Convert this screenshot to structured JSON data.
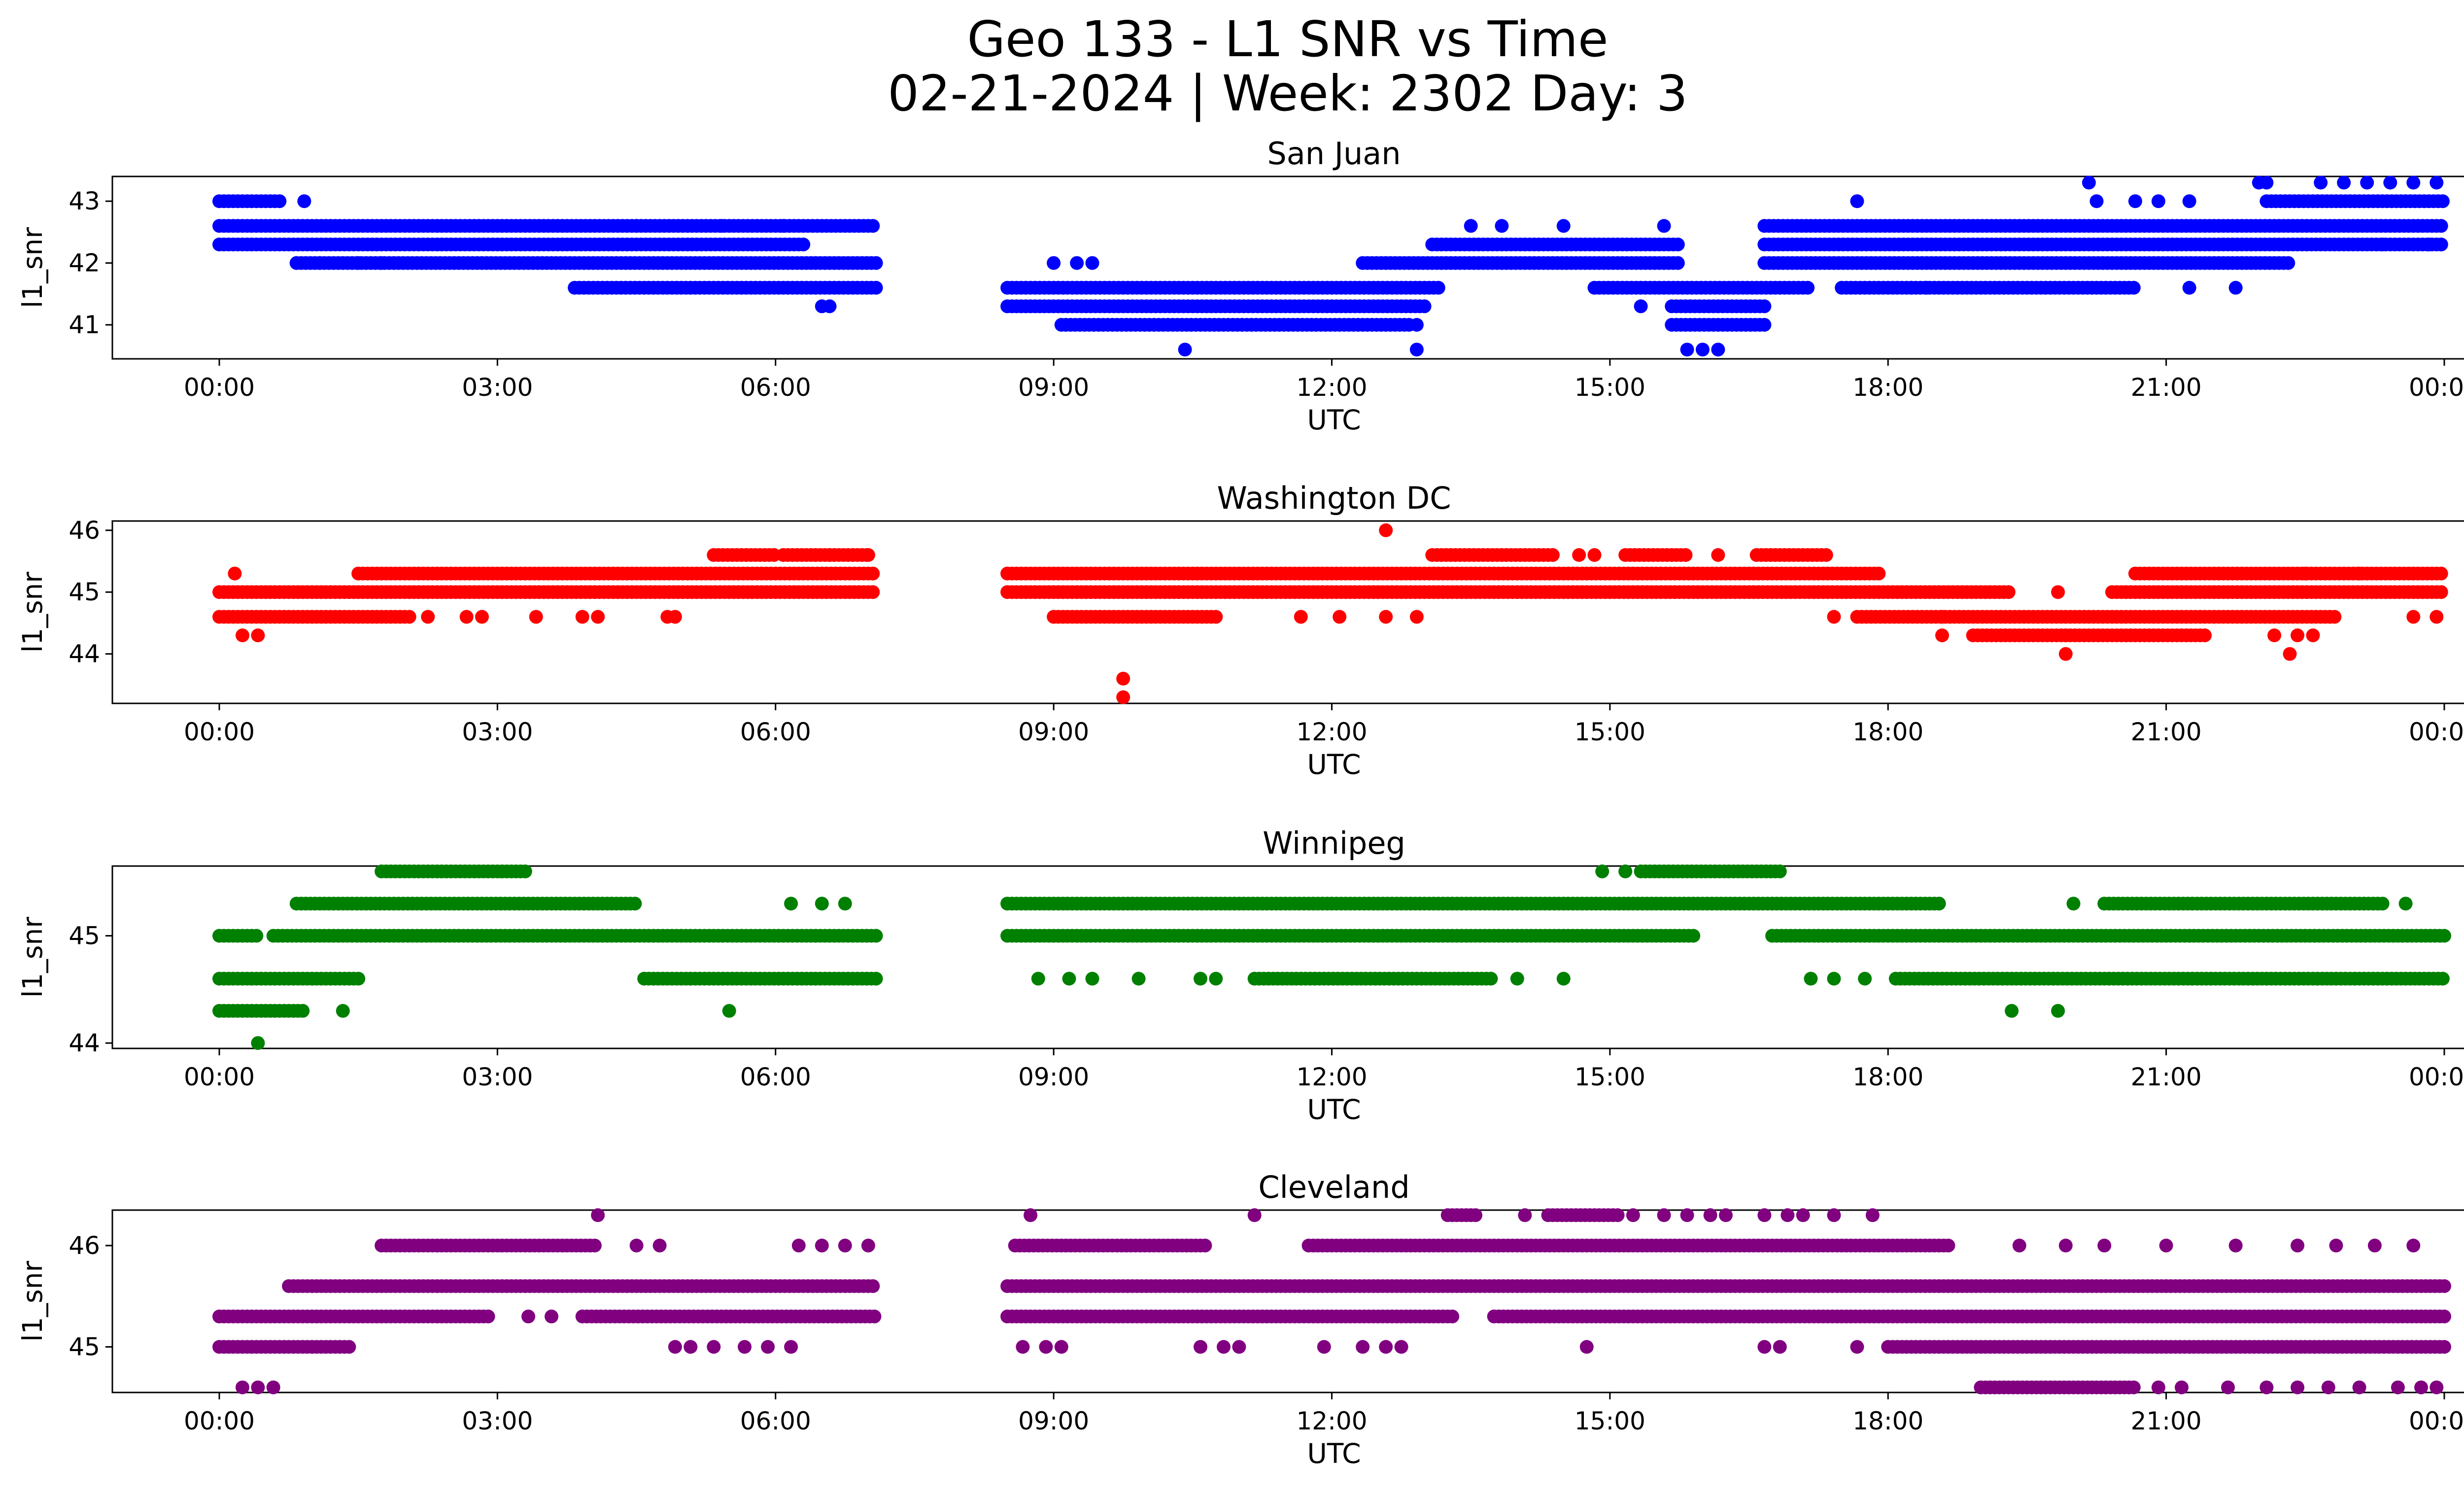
{
  "figure": {
    "title_line1": "Geo 133 - L1 SNR vs Time",
    "title_line2": "02-21-2024 | Week: 2302 Day: 3"
  },
  "chart_data": [
    {
      "type": "scatter",
      "title": "San Juan",
      "xlabel": "UTC",
      "ylabel": "l1_snr",
      "color": "#0000ff",
      "xlim": [
        "00:00",
        "24:00"
      ],
      "xticks": [
        "00:00",
        "03:00",
        "06:00",
        "09:00",
        "12:00",
        "15:00",
        "18:00",
        "21:00",
        "00:00"
      ],
      "ylim": [
        40.45,
        43.4
      ],
      "yticks": [
        41,
        42,
        43
      ],
      "y_levels": [
        41.0,
        41.3,
        41.6,
        42.0,
        42.3,
        42.6,
        43.0
      ],
      "bands": [
        {
          "y": 42.6,
          "segments": [
            [
              "00:00",
              "07:05"
            ],
            [
              "16:40",
              "24:00"
            ]
          ]
        },
        {
          "y": 42.3,
          "segments": [
            [
              "00:00",
              "06:20"
            ],
            [
              "13:05",
              "15:45"
            ],
            [
              "16:40",
              "24:00"
            ]
          ]
        },
        {
          "y": 42.0,
          "segments": [
            [
              "00:50",
              "07:05"
            ],
            [
              "12:20",
              "15:45"
            ],
            [
              "16:40",
              "22:20"
            ]
          ]
        },
        {
          "y": 41.6,
          "segments": [
            [
              "03:50",
              "07:05"
            ],
            [
              "08:30",
              "13:10"
            ],
            [
              "14:50",
              "17:10"
            ],
            [
              "17:30",
              "20:40"
            ]
          ]
        },
        {
          "y": 41.3,
          "segments": [
            [
              "08:30",
              "13:00"
            ],
            [
              "15:40",
              "16:40"
            ]
          ]
        },
        {
          "y": 41.0,
          "segments": [
            [
              "09:05",
              "12:50"
            ],
            [
              "15:40",
              "16:40"
            ]
          ]
        },
        {
          "y": 43.0,
          "segments": [
            [
              "00:00",
              "00:40"
            ],
            [
              "22:05",
              "24:00"
            ]
          ]
        }
      ],
      "points": [
        [
          "00:55",
          43.0
        ],
        [
          "00:50",
          42.0
        ],
        [
          "01:05",
          42.0
        ],
        [
          "01:30",
          42.0
        ],
        [
          "01:45",
          42.0
        ],
        [
          "04:30",
          42.6
        ],
        [
          "05:25",
          42.6
        ],
        [
          "06:05",
          42.6
        ],
        [
          "06:30",
          41.3
        ],
        [
          "06:35",
          41.3
        ],
        [
          "09:00",
          42.0
        ],
        [
          "09:15",
          42.0
        ],
        [
          "09:25",
          42.0
        ],
        [
          "10:25",
          40.6
        ],
        [
          "12:55",
          40.6
        ],
        [
          "12:55",
          41.0
        ],
        [
          "13:30",
          42.6
        ],
        [
          "13:50",
          42.6
        ],
        [
          "14:30",
          42.6
        ],
        [
          "15:35",
          42.6
        ],
        [
          "15:20",
          41.3
        ],
        [
          "15:50",
          40.6
        ],
        [
          "16:00",
          40.6
        ],
        [
          "16:10",
          40.6
        ],
        [
          "17:40",
          43.0
        ],
        [
          "18:15",
          41.6
        ],
        [
          "18:25",
          41.6
        ],
        [
          "20:10",
          43.3
        ],
        [
          "20:15",
          43.0
        ],
        [
          "20:40",
          43.0
        ],
        [
          "20:55",
          43.0
        ],
        [
          "21:15",
          43.0
        ],
        [
          "21:15",
          41.6
        ],
        [
          "21:45",
          41.6
        ],
        [
          "22:00",
          43.3
        ],
        [
          "22:05",
          43.3
        ],
        [
          "22:40",
          43.3
        ],
        [
          "22:55",
          43.3
        ],
        [
          "23:10",
          43.3
        ],
        [
          "23:25",
          43.3
        ],
        [
          "23:40",
          43.3
        ],
        [
          "23:55",
          43.3
        ],
        [
          "23:20",
          42.3
        ],
        [
          "23:50",
          42.3
        ],
        [
          "23:58",
          42.3
        ]
      ]
    },
    {
      "type": "scatter",
      "title": "Washington DC",
      "xlabel": "UTC",
      "ylabel": "l1_snr",
      "color": "#ff0000",
      "xlim": [
        "00:00",
        "24:00"
      ],
      "xticks": [
        "00:00",
        "03:00",
        "06:00",
        "09:00",
        "12:00",
        "15:00",
        "18:00",
        "21:00",
        "00:00"
      ],
      "ylim": [
        43.2,
        46.15
      ],
      "yticks": [
        44,
        45,
        46
      ],
      "y_levels": [
        43.3,
        43.6,
        44.0,
        44.3,
        44.6,
        45.0,
        45.3,
        45.6,
        46.0
      ],
      "bands": [
        {
          "y": 45.0,
          "segments": [
            [
              "00:00",
              "07:05"
            ],
            [
              "08:30",
              "19:20"
            ],
            [
              "20:25",
              "24:00"
            ]
          ]
        },
        {
          "y": 45.3,
          "segments": [
            [
              "01:30",
              "07:05"
            ],
            [
              "08:30",
              "17:55"
            ],
            [
              "20:40",
              "24:00"
            ]
          ]
        },
        {
          "y": 44.6,
          "segments": [
            [
              "00:00",
              "02:05"
            ],
            [
              "09:00",
              "10:45"
            ],
            [
              "17:40",
              "22:50"
            ]
          ]
        },
        {
          "y": 45.6,
          "segments": [
            [
              "05:20",
              "06:00"
            ],
            [
              "06:05",
              "07:00"
            ],
            [
              "13:05",
              "14:25"
            ],
            [
              "15:10",
              "15:50"
            ],
            [
              "16:35",
              "17:20"
            ]
          ]
        },
        {
          "y": 44.3,
          "segments": [
            [
              "18:55",
              "21:25"
            ]
          ]
        }
      ],
      "points": [
        [
          "00:10",
          45.3
        ],
        [
          "00:15",
          44.3
        ],
        [
          "00:25",
          44.3
        ],
        [
          "02:15",
          44.6
        ],
        [
          "02:40",
          44.6
        ],
        [
          "02:50",
          44.6
        ],
        [
          "03:25",
          44.6
        ],
        [
          "03:55",
          44.6
        ],
        [
          "04:05",
          44.6
        ],
        [
          "04:50",
          44.6
        ],
        [
          "04:55",
          44.6
        ],
        [
          "06:35",
          45.6
        ],
        [
          "07:00",
          45.6
        ],
        [
          "09:45",
          43.6
        ],
        [
          "09:45",
          43.3
        ],
        [
          "11:40",
          44.6
        ],
        [
          "12:05",
          44.6
        ],
        [
          "12:35",
          44.6
        ],
        [
          "12:55",
          44.6
        ],
        [
          "12:35",
          46.0
        ],
        [
          "14:40",
          45.6
        ],
        [
          "14:50",
          45.6
        ],
        [
          "16:10",
          45.6
        ],
        [
          "17:25",
          44.6
        ],
        [
          "18:35",
          44.3
        ],
        [
          "18:35",
          44.6
        ],
        [
          "19:50",
          45.0
        ],
        [
          "19:55",
          44.0
        ],
        [
          "19:55",
          44.3
        ],
        [
          "22:10",
          44.3
        ],
        [
          "22:20",
          44.0
        ],
        [
          "22:25",
          44.3
        ],
        [
          "22:35",
          44.3
        ],
        [
          "22:30",
          45.3
        ],
        [
          "23:05",
          45.3
        ],
        [
          "23:40",
          44.6
        ],
        [
          "23:55",
          44.6
        ]
      ]
    },
    {
      "type": "scatter",
      "title": "Winnipeg",
      "xlabel": "UTC",
      "ylabel": "l1_snr",
      "color": "#008000",
      "xlim": [
        "00:00",
        "24:00"
      ],
      "xticks": [
        "00:00",
        "03:00",
        "06:00",
        "09:00",
        "12:00",
        "15:00",
        "18:00",
        "21:00",
        "00:00"
      ],
      "ylim": [
        43.95,
        45.65
      ],
      "yticks": [
        44,
        45
      ],
      "y_levels": [
        44.0,
        44.3,
        44.6,
        45.0,
        45.3,
        45.6
      ],
      "bands": [
        {
          "y": 45.0,
          "segments": [
            [
              "00:00",
              "00:25"
            ],
            [
              "00:35",
              "07:05"
            ],
            [
              "08:30",
              "15:55"
            ],
            [
              "16:45",
              "24:00"
            ]
          ]
        },
        {
          "y": 45.3,
          "segments": [
            [
              "00:50",
              "04:30"
            ],
            [
              "08:30",
              "18:35"
            ],
            [
              "20:20",
              "23:20"
            ]
          ]
        },
        {
          "y": 44.6,
          "segments": [
            [
              "00:00",
              "01:30"
            ],
            [
              "04:35",
              "07:05"
            ],
            [
              "11:10",
              "13:45"
            ],
            [
              "18:05",
              "24:00"
            ]
          ]
        },
        {
          "y": 45.6,
          "segments": [
            [
              "01:45",
              "03:20"
            ],
            [
              "15:20",
              "16:50"
            ]
          ]
        },
        {
          "y": 44.3,
          "segments": [
            [
              "00:00",
              "00:55"
            ]
          ]
        }
      ],
      "points": [
        [
          "00:25",
          44.0
        ],
        [
          "01:20",
          44.3
        ],
        [
          "05:30",
          44.3
        ],
        [
          "06:10",
          45.3
        ],
        [
          "06:30",
          45.3
        ],
        [
          "06:45",
          45.3
        ],
        [
          "08:50",
          44.6
        ],
        [
          "09:10",
          44.6
        ],
        [
          "09:25",
          44.6
        ],
        [
          "09:55",
          44.6
        ],
        [
          "10:35",
          44.6
        ],
        [
          "10:45",
          44.6
        ],
        [
          "14:00",
          44.6
        ],
        [
          "14:30",
          44.6
        ],
        [
          "14:55",
          45.6
        ],
        [
          "15:10",
          45.6
        ],
        [
          "17:10",
          44.6
        ],
        [
          "17:25",
          44.6
        ],
        [
          "17:45",
          44.6
        ],
        [
          "19:20",
          44.3
        ],
        [
          "19:50",
          44.3
        ],
        [
          "20:00",
          45.3
        ],
        [
          "23:35",
          45.3
        ]
      ]
    },
    {
      "type": "scatter",
      "title": "Cleveland",
      "xlabel": "UTC",
      "ylabel": "l1_snr",
      "color": "#800080",
      "xlim": [
        "00:00",
        "24:00"
      ],
      "xticks": [
        "00:00",
        "03:00",
        "06:00",
        "09:00",
        "12:00",
        "15:00",
        "18:00",
        "21:00",
        "00:00"
      ],
      "ylim": [
        44.55,
        46.35
      ],
      "yticks": [
        45,
        46
      ],
      "y_levels": [
        44.6,
        45.0,
        45.3,
        45.6,
        46.0,
        46.3
      ],
      "bands": [
        {
          "y": 45.3,
          "segments": [
            [
              "00:00",
              "02:55"
            ],
            [
              "03:55",
              "07:05"
            ],
            [
              "08:30",
              "13:20"
            ],
            [
              "13:45",
              "24:00"
            ]
          ]
        },
        {
          "y": 45.6,
          "segments": [
            [
              "00:45",
              "07:05"
            ],
            [
              "08:30",
              "24:00"
            ]
          ]
        },
        {
          "y": 45.0,
          "segments": [
            [
              "00:00",
              "01:25"
            ],
            [
              "18:00",
              "24:00"
            ]
          ]
        },
        {
          "y": 46.0,
          "segments": [
            [
              "01:45",
              "04:05"
            ],
            [
              "08:35",
              "10:40"
            ],
            [
              "11:45",
              "18:40"
            ]
          ]
        },
        {
          "y": 44.6,
          "segments": [
            [
              "19:00",
              "20:40"
            ]
          ]
        },
        {
          "y": 46.3,
          "segments": [
            [
              "13:15",
              "13:35"
            ],
            [
              "14:20",
              "15:05"
            ]
          ]
        }
      ],
      "points": [
        [
          "00:15",
          44.6
        ],
        [
          "00:25",
          44.6
        ],
        [
          "00:35",
          44.6
        ],
        [
          "03:20",
          45.3
        ],
        [
          "03:35",
          45.3
        ],
        [
          "04:05",
          46.3
        ],
        [
          "04:30",
          46.0
        ],
        [
          "04:45",
          46.0
        ],
        [
          "04:55",
          45.0
        ],
        [
          "05:05",
          45.0
        ],
        [
          "05:20",
          45.0
        ],
        [
          "05:40",
          45.0
        ],
        [
          "05:55",
          45.0
        ],
        [
          "06:10",
          45.0
        ],
        [
          "06:15",
          46.0
        ],
        [
          "06:30",
          46.0
        ],
        [
          "06:45",
          46.0
        ],
        [
          "07:00",
          46.0
        ],
        [
          "08:45",
          46.3
        ],
        [
          "08:40",
          45.0
        ],
        [
          "08:55",
          45.0
        ],
        [
          "09:05",
          45.0
        ],
        [
          "10:35",
          45.0
        ],
        [
          "10:50",
          45.0
        ],
        [
          "11:00",
          45.0
        ],
        [
          "11:10",
          46.3
        ],
        [
          "11:55",
          45.0
        ],
        [
          "12:20",
          45.0
        ],
        [
          "12:35",
          45.0
        ],
        [
          "12:45",
          45.0
        ],
        [
          "14:05",
          46.3
        ],
        [
          "14:45",
          45.0
        ],
        [
          "15:15",
          46.3
        ],
        [
          "15:35",
          46.3
        ],
        [
          "15:50",
          46.3
        ],
        [
          "16:05",
          46.3
        ],
        [
          "16:15",
          46.3
        ],
        [
          "16:40",
          46.3
        ],
        [
          "16:55",
          46.3
        ],
        [
          "17:05",
          46.3
        ],
        [
          "17:25",
          46.3
        ],
        [
          "17:50",
          46.3
        ],
        [
          "16:40",
          45.0
        ],
        [
          "16:50",
          45.0
        ],
        [
          "17:40",
          45.0
        ],
        [
          "19:25",
          46.0
        ],
        [
          "19:55",
          46.0
        ],
        [
          "20:20",
          46.0
        ],
        [
          "21:00",
          46.0
        ],
        [
          "21:45",
          46.0
        ],
        [
          "22:25",
          46.0
        ],
        [
          "22:50",
          46.0
        ],
        [
          "23:15",
          46.0
        ],
        [
          "23:40",
          46.0
        ],
        [
          "20:55",
          44.6
        ],
        [
          "21:10",
          44.6
        ],
        [
          "21:40",
          44.6
        ],
        [
          "22:05",
          44.6
        ],
        [
          "22:25",
          44.6
        ],
        [
          "22:45",
          44.6
        ],
        [
          "23:05",
          44.6
        ],
        [
          "23:30",
          44.6
        ],
        [
          "23:45",
          44.6
        ],
        [
          "23:55",
          44.6
        ]
      ]
    }
  ]
}
